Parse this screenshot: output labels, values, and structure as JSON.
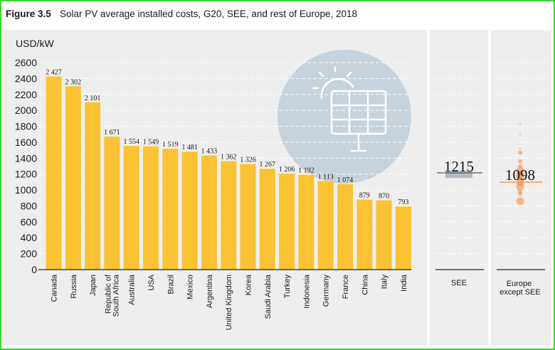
{
  "figure": {
    "label": "Figure 3.5",
    "title": "Solar PV average installed costs, G20, SEE, and rest of Europe, 2018"
  },
  "colors": {
    "bar": "#fbc334",
    "grid": "#ffffff",
    "panel_bg": "#eeeeee",
    "see_band": "#b3bcc6",
    "europe_dots": "#f08a3c",
    "frame": "#3ad62f"
  },
  "icon": {
    "name": "solar-panel-sun-icon"
  },
  "chart_data": [
    {
      "type": "bar",
      "title": "Solar PV average installed costs, G20, SEE, and rest of Europe, 2018",
      "ylabel": "USD/kW",
      "xlabel": "",
      "ylim": [
        0,
        2600
      ],
      "yticks": [
        0,
        200,
        400,
        600,
        800,
        1000,
        1200,
        1400,
        1600,
        1800,
        2000,
        2200,
        2400,
        2600
      ],
      "grid": true,
      "categories": [
        "Canada",
        "Russia",
        "Japan",
        "Republic of South Africa",
        "Australia",
        "USA",
        "Brazil",
        "Mexico",
        "Argentina",
        "United Kingdom",
        "Korea",
        "Saudi Arabia",
        "Turkey",
        "Indonesia",
        "Germany",
        "France",
        "China",
        "Italy",
        "India"
      ],
      "values": [
        2427,
        2302,
        2101,
        1671,
        1554,
        1549,
        1519,
        1481,
        1433,
        1362,
        1326,
        1267,
        1206,
        1192,
        1113,
        1074,
        879,
        870,
        793
      ],
      "value_labels": [
        "2 427",
        "2 302",
        "2 101",
        "1 671",
        "1 554",
        "1 549",
        "1 519",
        "1 481",
        "1 433",
        "1 362",
        "1 326",
        "1 267",
        "1 206",
        "1 192",
        "1 113",
        "1 074",
        "879",
        "870",
        "793"
      ]
    },
    {
      "type": "range",
      "category": "SEE",
      "value": 1215,
      "value_label": "1215",
      "range": [
        1150,
        1240
      ]
    },
    {
      "type": "scatter",
      "category": "Europe except SEE",
      "value": 1098,
      "value_label": "1098",
      "points": [
        {
          "y": 1830,
          "size": 1
        },
        {
          "y": 1700,
          "size": 1
        },
        {
          "y": 1520,
          "size": 1
        },
        {
          "y": 1470,
          "size": 2
        },
        {
          "y": 1360,
          "size": 2
        },
        {
          "y": 1300,
          "size": 2
        },
        {
          "y": 1240,
          "size": 3
        },
        {
          "y": 1200,
          "size": 3
        },
        {
          "y": 1160,
          "size": 3
        },
        {
          "y": 1100,
          "size": 3
        },
        {
          "y": 1040,
          "size": 3
        },
        {
          "y": 980,
          "size": 2
        },
        {
          "y": 950,
          "size": 2
        },
        {
          "y": 860,
          "size": 3
        }
      ]
    }
  ]
}
